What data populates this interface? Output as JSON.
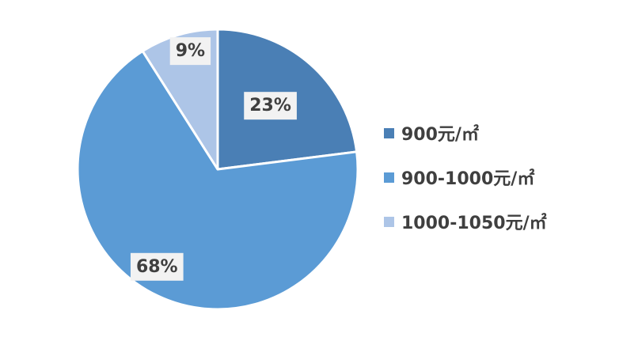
{
  "chart_data": {
    "type": "pie",
    "categories": [
      "900元/㎡",
      "900-1000元/㎡",
      "1000-1050元/㎡"
    ],
    "values": [
      23,
      68,
      9
    ],
    "data_labels": [
      "23%",
      "68%",
      "9%"
    ],
    "colors": [
      "#4a7fb5",
      "#5b9bd5",
      "#adc5e7"
    ],
    "legend_position": "right",
    "start_angle": "12 o'clock",
    "direction": "clockwise"
  },
  "legend": {
    "items": [
      {
        "label": "900元/㎡",
        "color": "#4a7fb5"
      },
      {
        "label": "900-1000元/㎡",
        "color": "#5b9bd5"
      },
      {
        "label": "1000-1050元/㎡",
        "color": "#adc5e7"
      }
    ]
  }
}
